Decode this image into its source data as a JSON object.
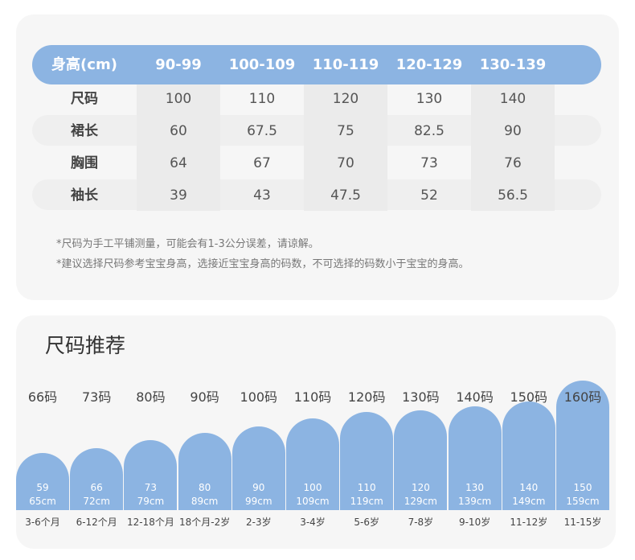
{
  "size_table": {
    "header_label": "身高(cm)",
    "columns": [
      "90-99",
      "100-109",
      "110-119",
      "120-129",
      "130-139"
    ],
    "rows": [
      {
        "label": "尺码",
        "values": [
          "100",
          "110",
          "120",
          "130",
          "140"
        ]
      },
      {
        "label": "裙长",
        "values": [
          "60",
          "67.5",
          "75",
          "82.5",
          "90"
        ]
      },
      {
        "label": "胸围",
        "values": [
          "64",
          "67",
          "70",
          "73",
          "76"
        ]
      },
      {
        "label": "袖长",
        "values": [
          "39",
          "43",
          "47.5",
          "52",
          "56.5"
        ]
      }
    ],
    "notes": [
      "*尺码为手工平铺测量，可能会有1-3公分误差，请谅解。",
      "*建议选择尺码参考宝宝身高，选接近宝宝身高的码数，不可选择的码数小于宝宝的身高。"
    ]
  },
  "recommend": {
    "title": "尺码推荐",
    "items": [
      {
        "size": "66码",
        "min": "59",
        "max": "65cm",
        "age": "3-6个月"
      },
      {
        "size": "73码",
        "min": "66",
        "max": "72cm",
        "age": "6-12个月"
      },
      {
        "size": "80码",
        "min": "73",
        "max": "79cm",
        "age": "12-18个月"
      },
      {
        "size": "90码",
        "min": "80",
        "max": "89cm",
        "age": "18个月-2岁"
      },
      {
        "size": "100码",
        "min": "90",
        "max": "99cm",
        "age": "2-3岁"
      },
      {
        "size": "110码",
        "min": "100",
        "max": "109cm",
        "age": "3-4岁"
      },
      {
        "size": "120码",
        "min": "110",
        "max": "119cm",
        "age": "5-6岁"
      },
      {
        "size": "130码",
        "min": "120",
        "max": "129cm",
        "age": "7-8岁"
      },
      {
        "size": "140码",
        "min": "130",
        "max": "139cm",
        "age": "9-10岁"
      },
      {
        "size": "150码",
        "min": "140",
        "max": "149cm",
        "age": "11-12岁"
      },
      {
        "size": "160码",
        "min": "150",
        "max": "159cm",
        "age": "11-15岁"
      }
    ]
  },
  "colors": {
    "accent": "#8cb4e2",
    "card": "#f6f6f6"
  }
}
